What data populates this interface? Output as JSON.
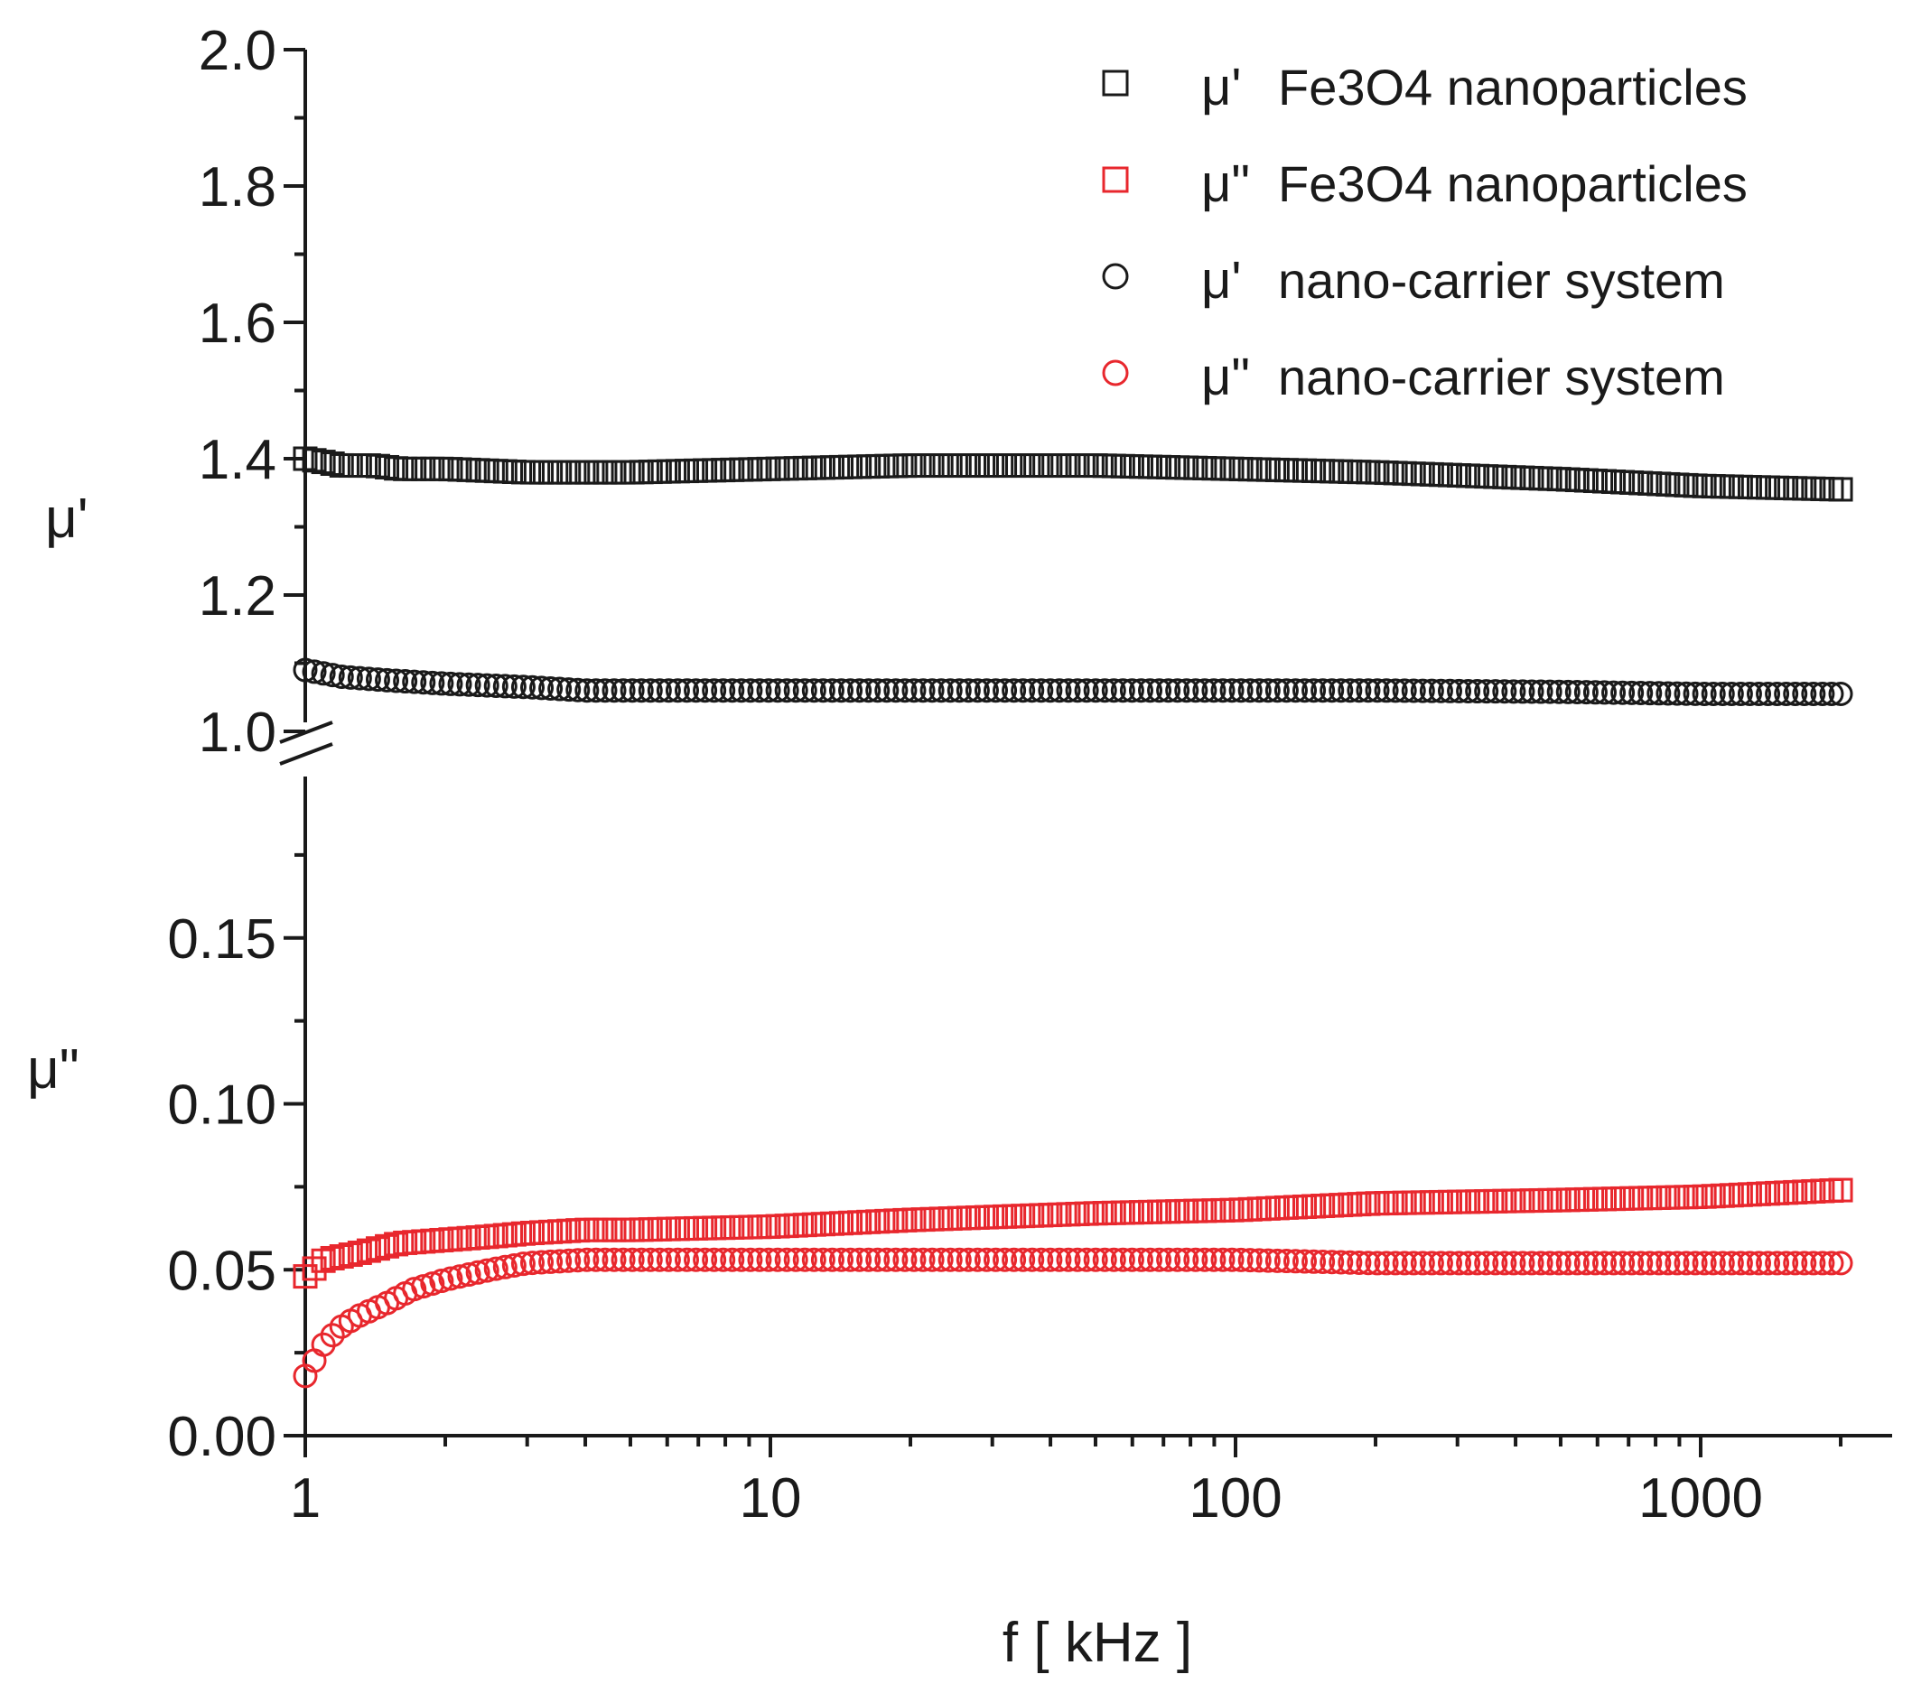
{
  "chart_data": {
    "type": "scatter",
    "xscale": "log",
    "xlabel": "f [ kHz ]",
    "xlim": [
      1,
      2000
    ],
    "x_ticks": [
      "1",
      "10",
      "100",
      "1000"
    ],
    "upper_panel": {
      "ylabel": "μ'",
      "ylim": [
        1.0,
        2.0
      ],
      "y_ticks": [
        "1.0",
        "1.2",
        "1.4",
        "1.6",
        "1.8",
        "2.0"
      ]
    },
    "lower_panel": {
      "ylabel": "μ\"",
      "ylim": [
        0.0,
        0.2
      ],
      "y_ticks": [
        "0.00",
        "0.05",
        "0.10",
        "0.15"
      ]
    },
    "axis_break": true,
    "colors": {
      "black": "#1a1a1a",
      "red": "#e8272d"
    },
    "legend": {
      "position": "top-right",
      "entries": [
        {
          "prefix": "μ'",
          "label": "Fe3O4 nanoparticles",
          "marker": "square",
          "color": "#1a1a1a"
        },
        {
          "prefix": "μ\"",
          "label": "Fe3O4 nanoparticles",
          "marker": "square",
          "color": "#e8272d"
        },
        {
          "prefix": "μ'",
          "label": "nano-carrier system",
          "marker": "circle",
          "color": "#1a1a1a"
        },
        {
          "prefix": "μ\"",
          "label": "nano-carrier system",
          "marker": "circle",
          "color": "#e8272d"
        }
      ]
    },
    "series": [
      {
        "name": "μ' Fe3O4 nanoparticles",
        "panel": "upper",
        "marker": "square",
        "color": "#1a1a1a",
        "x": [
          1,
          1.1,
          1.2,
          1.4,
          1.6,
          2,
          3,
          5,
          10,
          20,
          50,
          100,
          200,
          500,
          1000,
          2000
        ],
        "y": [
          1.4,
          1.395,
          1.39,
          1.39,
          1.385,
          1.385,
          1.38,
          1.38,
          1.385,
          1.39,
          1.39,
          1.385,
          1.38,
          1.37,
          1.36,
          1.355
        ]
      },
      {
        "name": "μ\" Fe3O4 nanoparticles",
        "panel": "lower",
        "marker": "square",
        "color": "#e8272d",
        "x": [
          1,
          1.1,
          1.3,
          1.6,
          2,
          2.5,
          3,
          4,
          5,
          10,
          20,
          50,
          100,
          200,
          500,
          1000,
          2000
        ],
        "y": [
          0.048,
          0.053,
          0.055,
          0.058,
          0.059,
          0.06,
          0.061,
          0.062,
          0.062,
          0.063,
          0.065,
          0.067,
          0.068,
          0.07,
          0.071,
          0.072,
          0.074
        ]
      },
      {
        "name": "μ' nano-carrier system",
        "panel": "upper",
        "marker": "circle",
        "color": "#1a1a1a",
        "x": [
          1,
          1.2,
          1.5,
          2,
          3,
          4,
          5,
          10,
          20,
          50,
          100,
          200,
          500,
          1000,
          2000
        ],
        "y": [
          1.09,
          1.08,
          1.075,
          1.07,
          1.065,
          1.06,
          1.06,
          1.06,
          1.06,
          1.06,
          1.06,
          1.06,
          1.058,
          1.055,
          1.055
        ]
      },
      {
        "name": "μ\" nano-carrier system",
        "panel": "lower",
        "marker": "circle",
        "color": "#e8272d",
        "x": [
          1,
          1.05,
          1.1,
          1.2,
          1.3,
          1.5,
          1.7,
          2,
          2.5,
          3,
          4,
          5,
          10,
          20,
          50,
          100,
          200,
          500,
          1000,
          2000
        ],
        "y": [
          0.018,
          0.023,
          0.028,
          0.033,
          0.036,
          0.04,
          0.044,
          0.047,
          0.05,
          0.052,
          0.053,
          0.053,
          0.053,
          0.053,
          0.053,
          0.053,
          0.052,
          0.052,
          0.052,
          0.052
        ]
      }
    ]
  }
}
